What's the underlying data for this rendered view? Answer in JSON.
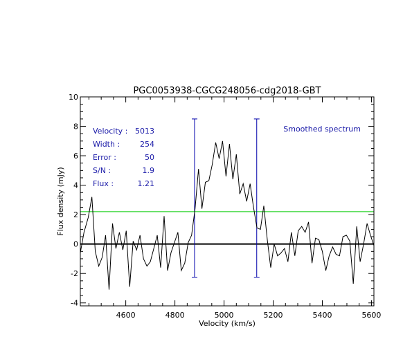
{
  "chart_data": {
    "type": "line",
    "title": "PGC0053938-CGCG248056-cdg2018-GBT",
    "xlabel": "Velocity (km/s)",
    "ylabel": "Flux density (mJy)",
    "xlim": [
      4415,
      5610
    ],
    "ylim": [
      -4.2,
      10
    ],
    "xticks": [
      4600,
      4800,
      5000,
      5200,
      5400,
      5600
    ],
    "yticks": [
      -4,
      -2,
      0,
      2,
      4,
      6,
      8,
      10
    ],
    "grid": false,
    "legend": "Smoothed spectrum",
    "legend_placement": "top-right",
    "series": [
      {
        "name": "Smoothed spectrum",
        "color": "#000000",
        "x": [
          4415,
          4430,
          4447,
          4462,
          4476,
          4490,
          4504,
          4518,
          4532,
          4546,
          4560,
          4574,
          4588,
          4602,
          4616,
          4630,
          4644,
          4658,
          4672,
          4686,
          4700,
          4714,
          4728,
          4742,
          4756,
          4770,
          4784,
          4798,
          4812,
          4826,
          4840,
          4854,
          4868,
          4882,
          4896,
          4910,
          4924,
          4938,
          4952,
          4966,
          4980,
          4994,
          5008,
          5022,
          5036,
          5050,
          5064,
          5078,
          5092,
          5106,
          5120,
          5134,
          5148,
          5162,
          5176,
          5190,
          5204,
          5218,
          5232,
          5246,
          5260,
          5274,
          5288,
          5302,
          5316,
          5330,
          5344,
          5358,
          5372,
          5386,
          5400,
          5414,
          5428,
          5442,
          5456,
          5470,
          5484,
          5498,
          5512,
          5526,
          5540,
          5554,
          5568,
          5582,
          5596,
          5610
        ],
        "y": [
          -0.6,
          0.8,
          1.8,
          3.2,
          -0.5,
          -1.5,
          -0.9,
          0.6,
          -3.1,
          1.4,
          -0.3,
          0.8,
          -0.4,
          0.9,
          -2.9,
          0.2,
          -0.4,
          0.6,
          -1.0,
          -1.5,
          -1.2,
          -0.3,
          0.6,
          -1.6,
          1.9,
          -1.8,
          -0.6,
          0.1,
          0.8,
          -1.8,
          -1.3,
          0.1,
          0.6,
          2.4,
          5.1,
          2.4,
          4.2,
          4.3,
          5.4,
          6.9,
          5.8,
          7.0,
          4.6,
          6.8,
          4.4,
          6.1,
          3.4,
          4.1,
          2.9,
          4.1,
          2.5,
          1.1,
          1.0,
          2.6,
          0.3,
          -1.6,
          0.0,
          -0.8,
          -0.6,
          -0.3,
          -1.2,
          0.8,
          -0.8,
          0.9,
          1.2,
          0.8,
          1.5,
          -1.3,
          0.4,
          0.3,
          -0.5,
          -1.8,
          -0.8,
          -0.2,
          -0.7,
          -0.8,
          0.5,
          0.6,
          0.2,
          -2.7,
          1.2,
          -1.2,
          0.0,
          1.4,
          0.6,
          -0.1
        ]
      }
    ],
    "reference_lines": {
      "zero_level": 0,
      "green_level": 2.2,
      "green_color": "#00cc00",
      "marker_color": "#0000aa",
      "markers_x": [
        4880,
        5133
      ],
      "marker_y_range": [
        -2.25,
        8.5
      ]
    },
    "annotations": [
      {
        "label": "Velocity :",
        "value": "5013"
      },
      {
        "label": "Width :",
        "value": "254"
      },
      {
        "label": "Error :",
        "value": "50"
      },
      {
        "label": "S/N :",
        "value": "1.9"
      },
      {
        "label": "Flux :",
        "value": "1.21"
      }
    ],
    "annotation_color": "#1a1aa8"
  }
}
